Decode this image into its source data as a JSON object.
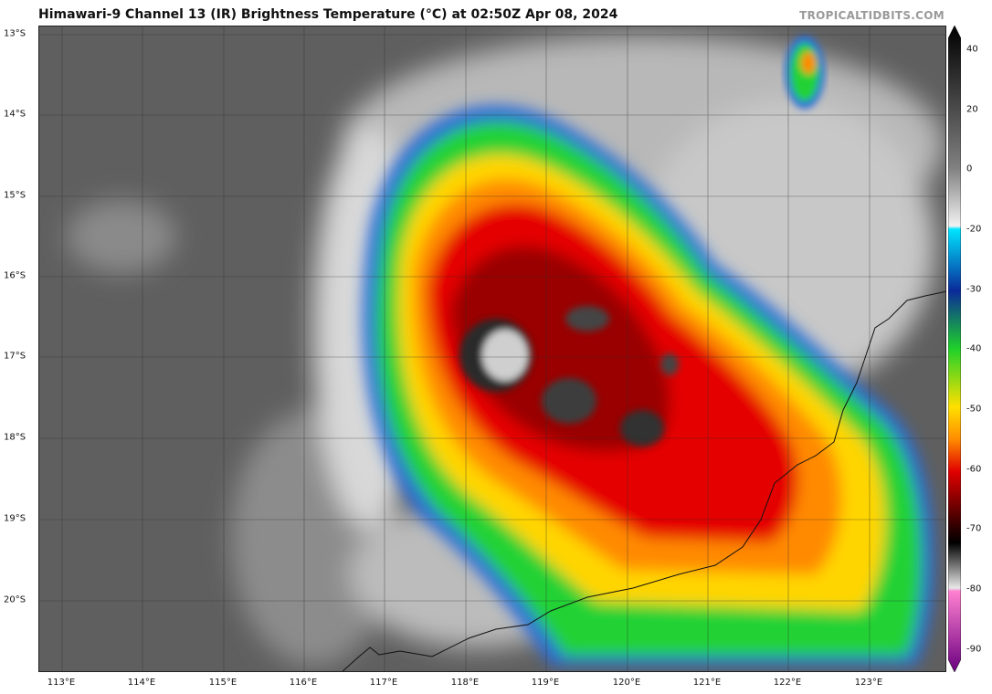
{
  "title": "Himawari-9 Channel 13 (IR) Brightness Temperature (°C) at 02:50Z Apr 08, 2024",
  "brand": "TROPICALTIDBITS.COM",
  "latitude_labels": [
    "13°S",
    "14°S",
    "15°S",
    "16°S",
    "17°S",
    "18°S",
    "19°S",
    "20°S"
  ],
  "longitude_labels": [
    "113°E",
    "114°E",
    "115°E",
    "116°E",
    "117°E",
    "118°E",
    "119°E",
    "120°E",
    "121°E",
    "122°E",
    "123°E"
  ],
  "colorbar": {
    "labels": [
      "40",
      "20",
      "0",
      "-20",
      "-30",
      "-40",
      "-50",
      "-60",
      "-70",
      "-80",
      "-90"
    ],
    "colors": {
      "warm_gray_top": "#000000",
      "gray_mid": "#808080",
      "light": "#f2f2f2",
      "cyan": "#00e5ff",
      "blue": "#0a2a9a",
      "green": "#1fd12a",
      "yellow": "#ffe000",
      "orange": "#ff8c00",
      "red": "#e00000",
      "dark_red": "#3a0000",
      "magenta": "#b000a8"
    }
  },
  "map": {
    "storm_center": {
      "lat": "17°S",
      "lon": "118°E"
    },
    "background_gray": "#5e5e5e"
  }
}
